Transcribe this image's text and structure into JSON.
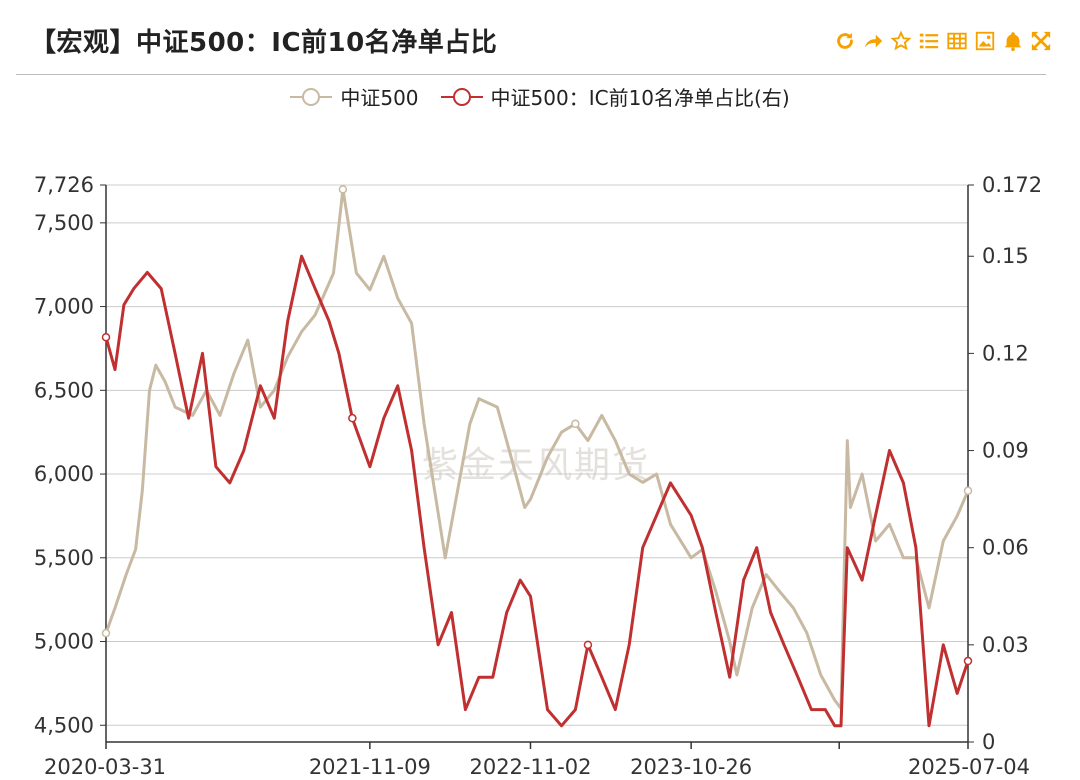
{
  "header": {
    "title": "【宏观】中证500：IC前10名净单占比"
  },
  "toolbar": {
    "icons": [
      "refresh-icon",
      "share-icon",
      "star-icon",
      "list-icon",
      "table-icon",
      "image-icon",
      "bell-icon",
      "fullscreen-icon"
    ],
    "accent": "#f5a100"
  },
  "watermark": "紫金天风期货",
  "colors": {
    "series1": "#c8b9a3",
    "series2": "#c03030",
    "grid": "#cccccc",
    "axis": "#333333"
  },
  "chart_data": {
    "type": "line",
    "title": "【宏观】中证500：IC前10名净单占比",
    "legend_position": "top-center",
    "grid": true,
    "x_range": [
      "2020-03-31",
      "2025-07-04"
    ],
    "x_tick_labels": [
      "2020-03-31",
      "2021-11-09",
      "2022-11-02",
      "2023-10-26",
      "2025-07-04"
    ],
    "y_left": {
      "ylim": [
        4400,
        7726
      ],
      "tick_labels": [
        "4,500",
        "5,000",
        "5,500",
        "6,000",
        "6,500",
        "7,000",
        "7,500",
        "7,726"
      ]
    },
    "y_right": {
      "ylim": [
        0,
        0.172
      ],
      "tick_labels": [
        "0",
        "0.03",
        "0.06",
        "0.09",
        "0.12",
        "0.15",
        "0.172"
      ]
    },
    "series": [
      {
        "name": "中证500",
        "axis": "left",
        "x": [
          "2020-03-31",
          "2020-04-20",
          "2020-05-15",
          "2020-06-05",
          "2020-06-20",
          "2020-07-06",
          "2020-07-20",
          "2020-08-10",
          "2020-09-01",
          "2020-10-10",
          "2020-11-10",
          "2020-12-10",
          "2021-01-10",
          "2021-02-10",
          "2021-03-10",
          "2021-04-10",
          "2021-05-10",
          "2021-06-10",
          "2021-07-10",
          "2021-08-20",
          "2021-09-10",
          "2021-10-10",
          "2021-11-09",
          "2021-12-10",
          "2022-01-10",
          "2022-02-10",
          "2022-03-10",
          "2022-04-26",
          "2022-05-20",
          "2022-06-20",
          "2022-07-10",
          "2022-08-20",
          "2022-09-20",
          "2022-10-20",
          "2022-11-02",
          "2022-12-10",
          "2023-01-10",
          "2023-02-10",
          "2023-03-10",
          "2023-04-10",
          "2023-05-10",
          "2023-06-10",
          "2023-07-10",
          "2023-08-10",
          "2023-09-10",
          "2023-10-26",
          "2023-11-20",
          "2023-12-20",
          "2024-01-20",
          "2024-02-05",
          "2024-03-10",
          "2024-04-10",
          "2024-05-10",
          "2024-06-10",
          "2024-07-10",
          "2024-08-10",
          "2024-09-10",
          "2024-09-24",
          "2024-10-08",
          "2024-10-15",
          "2024-11-10",
          "2024-12-10",
          "2025-01-10",
          "2025-02-10",
          "2025-03-10",
          "2025-04-08",
          "2025-05-10",
          "2025-06-10",
          "2025-07-04"
        ],
        "values": [
          5050,
          5200,
          5400,
          5550,
          5900,
          6500,
          6650,
          6550,
          6400,
          6350,
          6500,
          6350,
          6600,
          6800,
          6400,
          6500,
          6700,
          6850,
          6950,
          7200,
          7700,
          7200,
          7100,
          7300,
          7050,
          6900,
          6300,
          5500,
          5850,
          6300,
          6450,
          6400,
          6100,
          5800,
          5850,
          6100,
          6250,
          6300,
          6200,
          6350,
          6200,
          6000,
          5950,
          6000,
          5700,
          5500,
          5550,
          5300,
          5000,
          4800,
          5200,
          5400,
          5300,
          5200,
          5050,
          4800,
          4650,
          4600,
          6200,
          5800,
          6000,
          5600,
          5700,
          5500,
          5500,
          5200,
          5600,
          5750,
          5900
        ]
      },
      {
        "name": "中证500：IC前10名净单占比(右)",
        "axis": "right",
        "x": [
          "2020-03-31",
          "2020-04-20",
          "2020-05-10",
          "2020-06-01",
          "2020-07-01",
          "2020-08-01",
          "2020-09-01",
          "2020-10-01",
          "2020-11-01",
          "2020-12-01",
          "2021-01-01",
          "2021-02-01",
          "2021-03-10",
          "2021-04-10",
          "2021-05-10",
          "2021-06-10",
          "2021-07-10",
          "2021-08-10",
          "2021-09-01",
          "2021-10-01",
          "2021-11-09",
          "2021-12-10",
          "2022-01-10",
          "2022-02-10",
          "2022-03-10",
          "2022-04-10",
          "2022-05-10",
          "2022-06-10",
          "2022-07-10",
          "2022-08-10",
          "2022-09-10",
          "2022-10-10",
          "2022-11-02",
          "2022-12-10",
          "2023-01-10",
          "2023-02-10",
          "2023-03-10",
          "2023-04-10",
          "2023-05-10",
          "2023-06-10",
          "2023-07-10",
          "2023-08-10",
          "2023-09-10",
          "2023-10-26",
          "2023-11-20",
          "2023-12-20",
          "2024-01-20",
          "2024-02-20",
          "2024-03-20",
          "2024-04-20",
          "2024-05-20",
          "2024-06-20",
          "2024-07-20",
          "2024-08-20",
          "2024-09-10",
          "2024-09-24",
          "2024-10-08",
          "2024-11-10",
          "2024-12-10",
          "2025-01-10",
          "2025-02-10",
          "2025-03-10",
          "2025-04-08",
          "2025-05-10",
          "2025-06-10",
          "2025-07-04"
        ],
        "values": [
          0.125,
          0.115,
          0.135,
          0.14,
          0.145,
          0.14,
          0.12,
          0.1,
          0.12,
          0.085,
          0.08,
          0.09,
          0.11,
          0.1,
          0.13,
          0.15,
          0.14,
          0.13,
          0.12,
          0.1,
          0.085,
          0.1,
          0.11,
          0.09,
          0.06,
          0.03,
          0.04,
          0.01,
          0.02,
          0.02,
          0.04,
          0.05,
          0.045,
          0.01,
          0.005,
          0.01,
          0.03,
          0.02,
          0.01,
          0.03,
          0.06,
          0.07,
          0.08,
          0.07,
          0.06,
          0.04,
          0.02,
          0.05,
          0.06,
          0.04,
          0.03,
          0.02,
          0.01,
          0.01,
          0.005,
          0.005,
          0.06,
          0.05,
          0.07,
          0.09,
          0.08,
          0.06,
          0.005,
          0.03,
          0.015,
          0.025
        ]
      }
    ]
  }
}
